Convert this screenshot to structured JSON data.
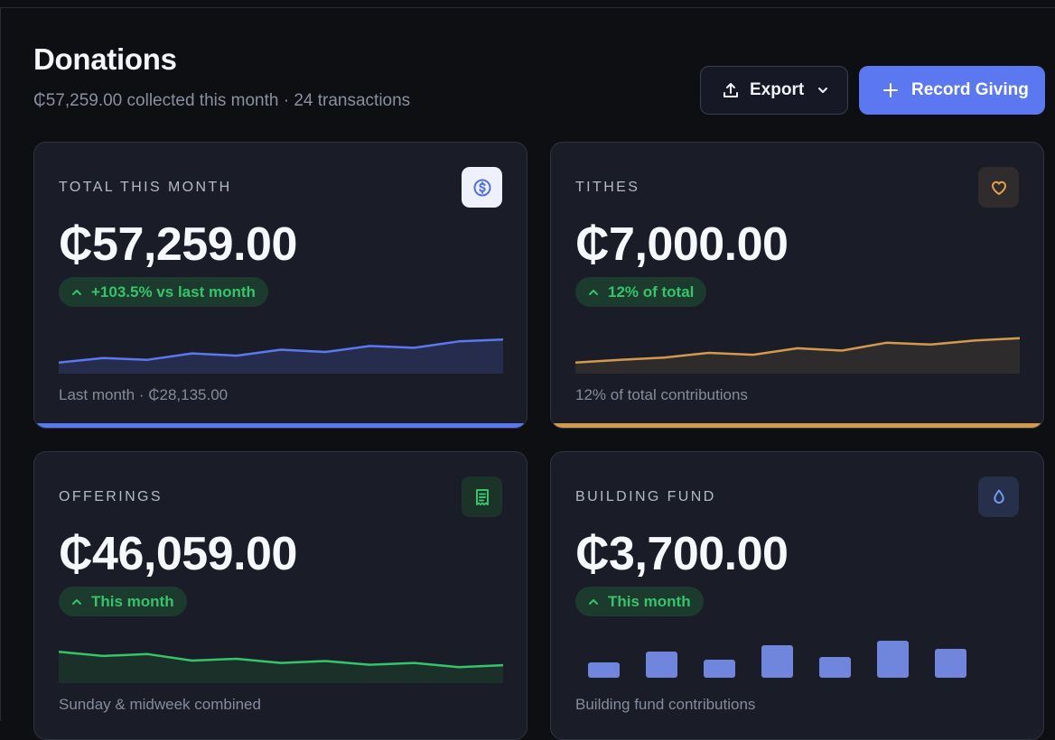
{
  "header": {
    "title": "Donations",
    "subtitle": "₵57,259.00 collected this month · 24 transactions",
    "export_label": "Export",
    "record_label": "Record Giving"
  },
  "colors": {
    "accent_blue": "#5b78f0",
    "tithes_gold": "#d39a4e",
    "offerings_green": "#35c46a",
    "building_blue": "#6f86dc"
  },
  "cards": {
    "total": {
      "label": "TOTAL THIS MONTH",
      "amount": "₵57,259.00",
      "badge": "+103.5% vs last month",
      "footer": "Last month · ₵28,135.00",
      "icon": "dollar-circle-icon",
      "trend": [
        2,
        3,
        2.6,
        4,
        3.5,
        4.8,
        4.3,
        5.6,
        5.2,
        6.6,
        7
      ]
    },
    "tithes": {
      "label": "TITHES",
      "amount": "₵7,000.00",
      "badge": "12% of total",
      "footer": "12% of total contributions",
      "icon": "heart-icon",
      "trend": [
        2,
        2.6,
        3.1,
        4.1,
        3.7,
        5.1,
        4.6,
        6.3,
        5.9,
        6.8,
        7.3
      ]
    },
    "offerings": {
      "label": "OFFERINGS",
      "amount": "₵46,059.00",
      "badge": "This month",
      "footer": "Sunday & midweek combined",
      "icon": "receipt-icon",
      "trend": [
        6.4,
        5.5,
        5.9,
        4.5,
        4.9,
        4.0,
        4.4,
        3.6,
        4.0,
        3.1,
        3.5
      ]
    },
    "building": {
      "label": "BUILDING FUND",
      "amount": "₵3,700.00",
      "badge": "This month",
      "footer": "Building fund contributions",
      "icon": "droplet-icon",
      "bars": [
        17,
        29,
        20,
        36,
        23,
        41,
        32
      ]
    }
  }
}
